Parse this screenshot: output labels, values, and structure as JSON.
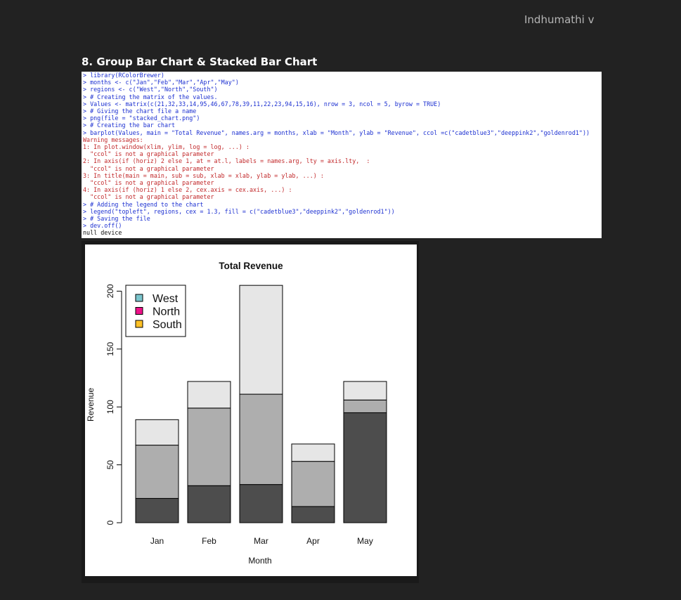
{
  "author": "Indhumathi v",
  "heading": "8. Group Bar Chart & Stacked Bar Chart",
  "console": [
    {
      "kind": "input",
      "text": "> library(RColorBrewer)"
    },
    {
      "kind": "input",
      "text": "> months <- c(\"Jan\",\"Feb\",\"Mar\",\"Apr\",\"May\")"
    },
    {
      "kind": "input",
      "text": "> regions <- c(\"West\",\"North\",\"South\")"
    },
    {
      "kind": "input",
      "text": "> # Creating the matrix of the values."
    },
    {
      "kind": "input",
      "text": "> Values <- matrix(c(21,32,33,14,95,46,67,78,39,11,22,23,94,15,16), nrow = 3, ncol = 5, byrow = TRUE)"
    },
    {
      "kind": "input",
      "text": "> # Giving the chart file a name"
    },
    {
      "kind": "input",
      "text": "> png(file = \"stacked_chart.png\")"
    },
    {
      "kind": "input",
      "text": "> # Creating the bar chart"
    },
    {
      "kind": "input",
      "text": "> barplot(Values, main = \"Total Revenue\", names.arg = months, xlab = \"Month\", ylab = \"Revenue\", ccol =c(\"cadetblue3\",\"deeppink2\",\"goldenrod1\"))"
    },
    {
      "kind": "warn",
      "text": "Warning messages:"
    },
    {
      "kind": "warn",
      "text": "1: In plot.window(xlim, ylim, log = log, ...) :"
    },
    {
      "kind": "warn",
      "text": "  \"ccol\" is not a graphical parameter"
    },
    {
      "kind": "warn",
      "text": "2: In axis(if (horiz) 2 else 1, at = at.l, labels = names.arg, lty = axis.lty,  :"
    },
    {
      "kind": "warn",
      "text": "  \"ccol\" is not a graphical parameter"
    },
    {
      "kind": "warn",
      "text": "3: In title(main = main, sub = sub, xlab = xlab, ylab = ylab, ...) :"
    },
    {
      "kind": "warn",
      "text": "  \"ccol\" is not a graphical parameter"
    },
    {
      "kind": "warn",
      "text": "4: In axis(if (horiz) 1 else 2, cex.axis = cex.axis, ...) :"
    },
    {
      "kind": "warn",
      "text": "  \"ccol\" is not a graphical parameter"
    },
    {
      "kind": "input",
      "text": "> # Adding the legend to the chart"
    },
    {
      "kind": "input",
      "text": "> legend(\"topleft\", regions, cex = 1.3, fill = c(\"cadetblue3\",\"deeppink2\",\"goldenrod1\"))"
    },
    {
      "kind": "input",
      "text": "> # Saving the file"
    },
    {
      "kind": "input",
      "text": "> dev.off()"
    },
    {
      "kind": "output",
      "text": "null device"
    }
  ],
  "chart_data": {
    "type": "bar",
    "stacked": true,
    "title": "Total Revenue",
    "xlabel": "Month",
    "ylabel": "Revenue",
    "categories": [
      "Jan",
      "Feb",
      "Mar",
      "Apr",
      "May"
    ],
    "series": [
      {
        "values": [
          21,
          32,
          33,
          14,
          95
        ],
        "color": "#4d4d4d"
      },
      {
        "values": [
          46,
          67,
          78,
          39,
          11
        ],
        "color": "#aeaeae"
      },
      {
        "values": [
          22,
          23,
          94,
          15,
          16
        ],
        "color": "#e6e6e6"
      }
    ],
    "yticks": [
      0,
      50,
      100,
      150,
      200
    ],
    "ylim": [
      0,
      205
    ],
    "grid": false,
    "legend": {
      "placement": "top-left",
      "entries": [
        {
          "label": "West",
          "color": "#7ac5cd"
        },
        {
          "label": "North",
          "color": "#ee1289"
        },
        {
          "label": "South",
          "color": "#ffc125"
        }
      ]
    }
  }
}
